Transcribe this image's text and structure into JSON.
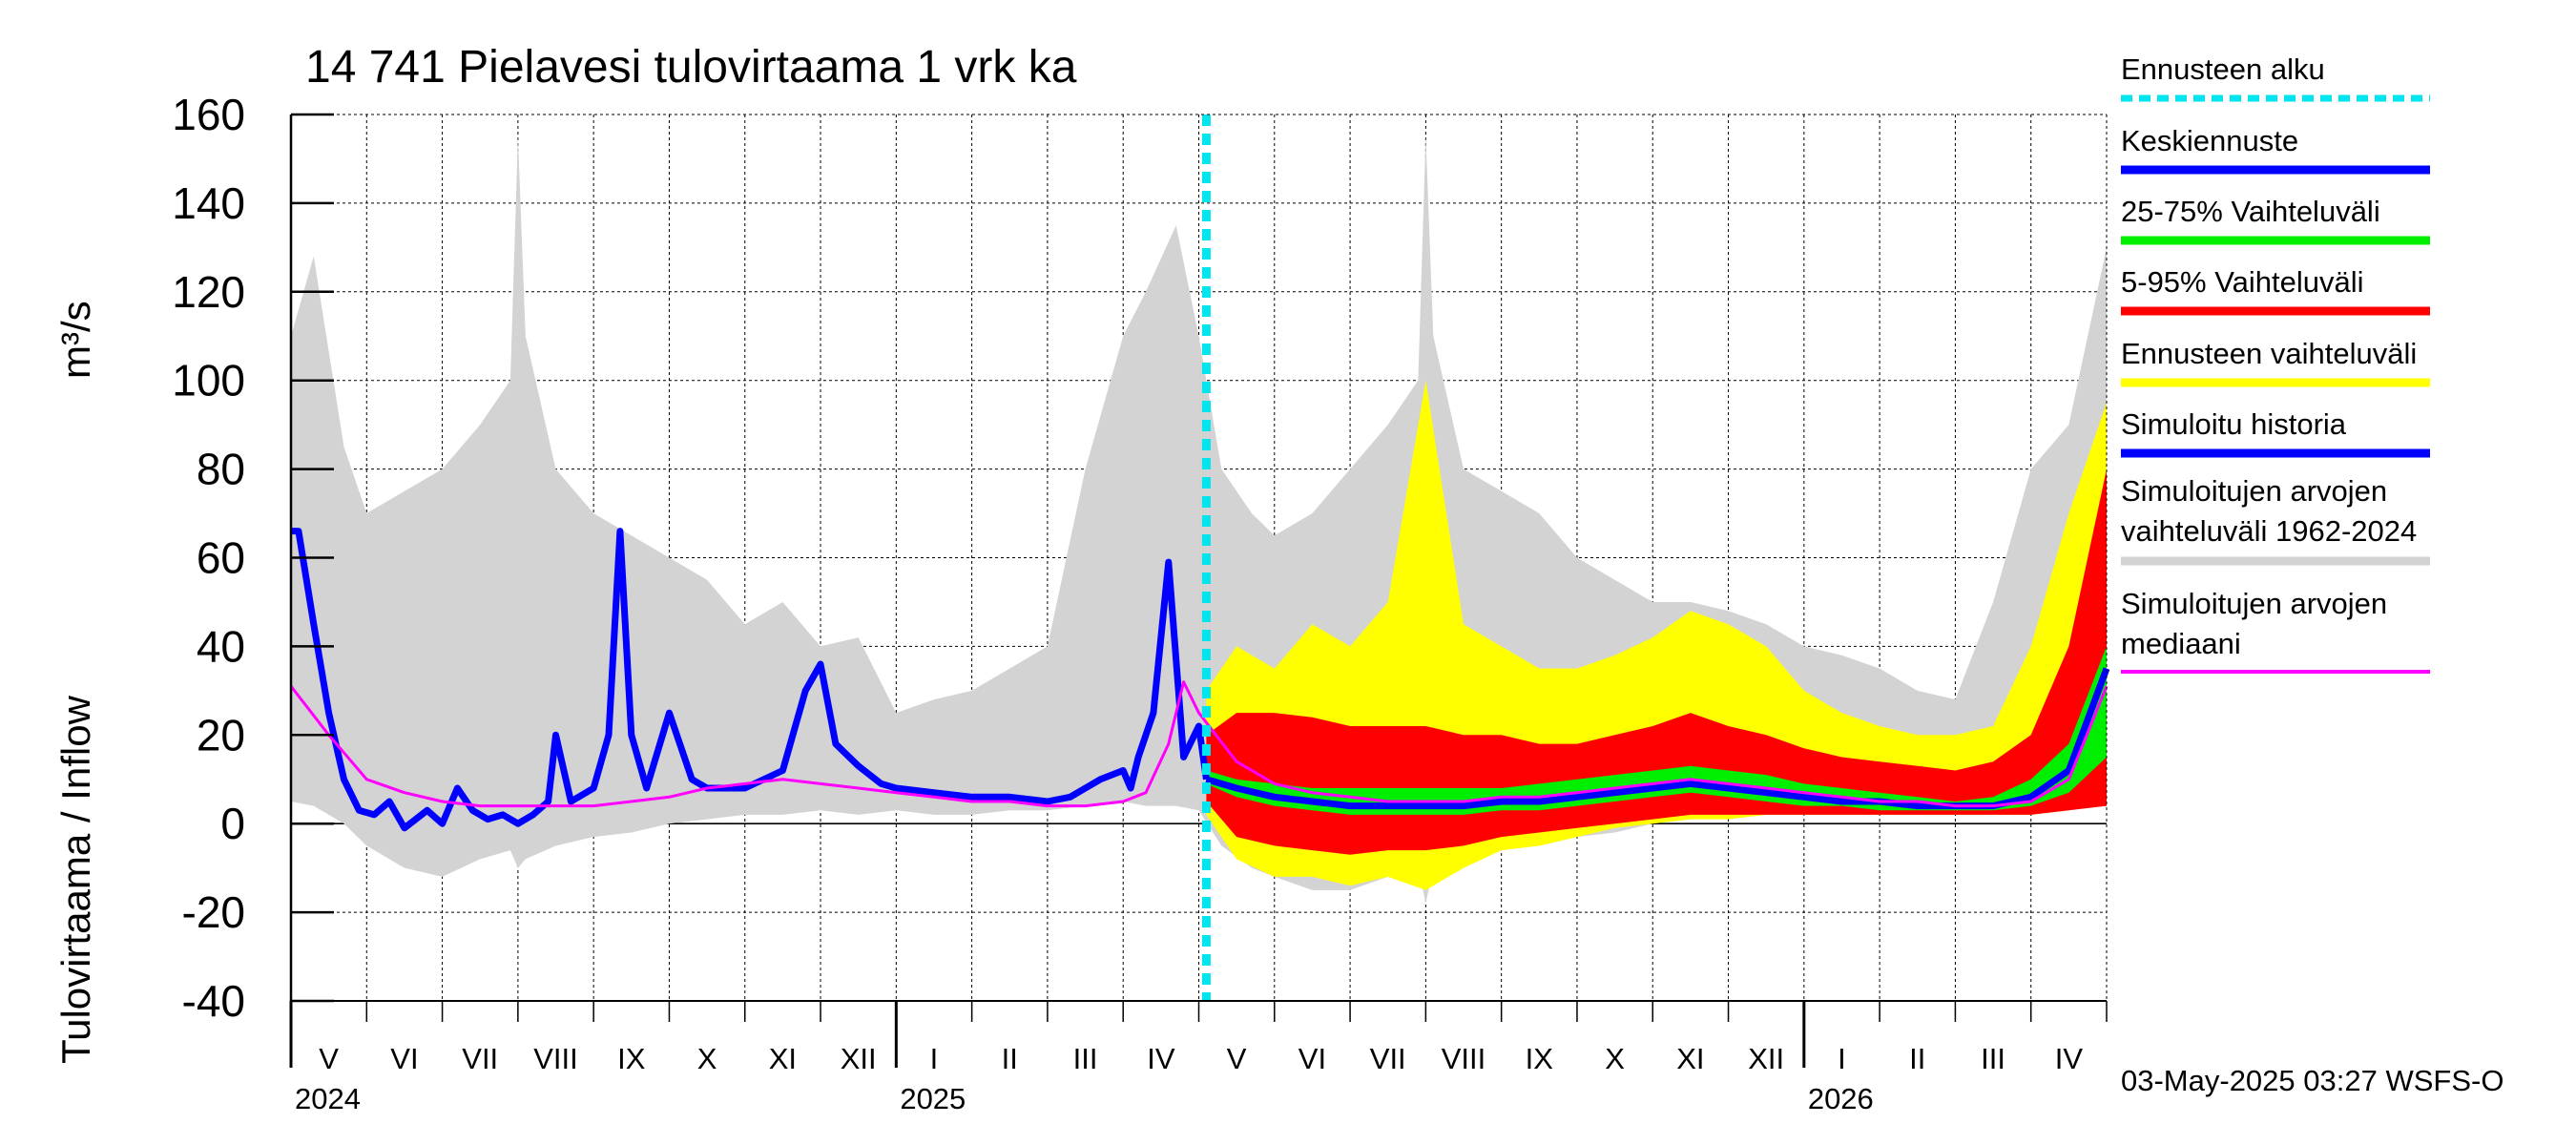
{
  "chart_data": {
    "type": "area",
    "title": "14 741 Pielavesi tulovirtaama 1 vrk ka",
    "ylabel": "Tulovirtaama / Inflow",
    "yunit": "m³/s",
    "ylim": [
      -40,
      160
    ],
    "yticks": [
      "-40",
      "-20",
      "0",
      "20",
      "40",
      "60",
      "80",
      "100",
      "120",
      "140",
      "160"
    ],
    "grid": true,
    "x_range_months": [
      0,
      24
    ],
    "forecast_start_month": 12.1,
    "months": [
      "V",
      "VI",
      "VII",
      "VIII",
      "IX",
      "X",
      "XI",
      "XII",
      "I",
      "II",
      "III",
      "IV",
      "V",
      "VI",
      "VII",
      "VIII",
      "IX",
      "X",
      "XI",
      "XII",
      "I",
      "II",
      "III",
      "IV"
    ],
    "years": [
      {
        "label": "2024",
        "month_index": 0
      },
      {
        "label": "2025",
        "month_index": 8
      },
      {
        "label": "2026",
        "month_index": 20
      }
    ],
    "series": [
      {
        "name": "Simuloitujen arvojen vaihteluväli 1962-2024",
        "color": "#d3d3d3",
        "x": [
          0,
          0.3,
          0.7,
          1,
          1.5,
          2,
          2.5,
          2.9,
          3,
          3.1,
          3.5,
          4,
          4.5,
          5,
          5.5,
          6,
          6.5,
          7,
          7.5,
          8,
          8.5,
          9,
          9.5,
          10,
          10.5,
          11,
          11.3,
          11.7,
          12,
          12.3,
          12.7,
          13,
          13.5,
          14,
          14.5,
          14.9,
          15,
          15.1,
          15.5,
          16,
          16.5,
          17,
          17.5,
          18,
          18.5,
          19,
          19.5,
          20,
          20.5,
          21,
          21.5,
          22,
          22.5,
          23,
          23.5,
          24
        ],
        "upper": [
          110,
          128,
          85,
          70,
          75,
          80,
          90,
          100,
          155,
          110,
          80,
          70,
          65,
          60,
          55,
          45,
          50,
          40,
          42,
          25,
          28,
          30,
          35,
          40,
          80,
          110,
          120,
          135,
          110,
          80,
          70,
          65,
          70,
          80,
          90,
          100,
          155,
          110,
          80,
          75,
          70,
          60,
          55,
          50,
          50,
          48,
          45,
          40,
          38,
          35,
          30,
          28,
          50,
          80,
          90,
          130
        ],
        "lower": [
          5,
          4,
          0,
          -5,
          -10,
          -12,
          -8,
          -6,
          -10,
          -8,
          -5,
          -3,
          -2,
          0,
          1,
          2,
          2,
          3,
          2,
          3,
          2,
          2,
          3,
          3,
          4,
          5,
          4,
          4,
          3,
          -5,
          -10,
          -12,
          -15,
          -15,
          -12,
          -10,
          -18,
          -10,
          -8,
          -6,
          -5,
          -3,
          -2,
          0,
          1,
          2,
          2,
          3,
          2,
          3,
          2,
          2,
          3,
          3,
          4,
          6
        ]
      },
      {
        "name": "Ennusteen vaihteluväli",
        "color": "#ffff00",
        "x": [
          12.1,
          12.5,
          13,
          13.5,
          14,
          14.5,
          15,
          15.5,
          16,
          16.5,
          17,
          17.5,
          18,
          18.5,
          19,
          19.5,
          20,
          20.5,
          21,
          21.5,
          22,
          22.5,
          23,
          23.5,
          24
        ],
        "upper": [
          30,
          40,
          35,
          45,
          40,
          50,
          100,
          45,
          40,
          35,
          35,
          38,
          42,
          48,
          45,
          40,
          30,
          25,
          22,
          20,
          20,
          22,
          40,
          70,
          95
        ],
        "lower": [
          2,
          -8,
          -12,
          -12,
          -14,
          -12,
          -15,
          -10,
          -6,
          -5,
          -3,
          -1,
          0,
          1,
          1,
          2,
          2,
          2,
          2,
          2,
          2,
          2,
          2,
          3,
          5
        ]
      },
      {
        "name": "5-95% Vaihteluväli",
        "color": "#ff0000",
        "x": [
          12.1,
          12.5,
          13,
          13.5,
          14,
          14.5,
          15,
          15.5,
          16,
          16.5,
          17,
          17.5,
          18,
          18.5,
          19,
          19.5,
          20,
          20.5,
          21,
          21.5,
          22,
          22.5,
          23,
          23.5,
          24
        ],
        "upper": [
          20,
          25,
          25,
          24,
          22,
          22,
          22,
          20,
          20,
          18,
          18,
          20,
          22,
          25,
          22,
          20,
          17,
          15,
          14,
          13,
          12,
          14,
          20,
          40,
          80
        ],
        "lower": [
          5,
          -3,
          -5,
          -6,
          -7,
          -6,
          -6,
          -5,
          -3,
          -2,
          -1,
          0,
          1,
          2,
          2,
          2,
          2,
          2,
          2,
          2,
          2,
          2,
          2,
          3,
          4
        ]
      },
      {
        "name": "25-75% Vaihteluväli",
        "color": "#00ee00",
        "x": [
          12.1,
          12.5,
          13,
          13.5,
          14,
          14.5,
          15,
          15.5,
          16,
          16.5,
          17,
          17.5,
          18,
          18.5,
          19,
          19.5,
          20,
          20.5,
          21,
          21.5,
          22,
          22.5,
          23,
          23.5,
          24
        ],
        "upper": [
          12,
          10,
          9,
          8,
          8,
          8,
          8,
          8,
          8,
          9,
          10,
          11,
          12,
          13,
          12,
          11,
          9,
          8,
          7,
          6,
          5,
          6,
          10,
          18,
          40
        ],
        "lower": [
          9,
          6,
          4,
          3,
          2,
          2,
          2,
          2,
          3,
          3,
          4,
          5,
          6,
          7,
          6,
          5,
          4,
          4,
          3,
          3,
          3,
          3,
          4,
          7,
          15
        ]
      },
      {
        "name": "Simuloitu historia",
        "color": "#0000ff",
        "x": [
          0,
          0.1,
          0.3,
          0.5,
          0.7,
          0.9,
          1.1,
          1.3,
          1.5,
          1.8,
          2,
          2.2,
          2.4,
          2.6,
          2.8,
          3,
          3.2,
          3.4,
          3.5,
          3.7,
          4,
          4.2,
          4.35,
          4.5,
          4.7,
          5,
          5.3,
          5.5,
          5.8,
          6,
          6.5,
          6.8,
          7,
          7.2,
          7.5,
          7.8,
          8,
          8.5,
          9,
          9.5,
          10,
          10.3,
          10.5,
          10.7,
          11,
          11.1,
          11.2,
          11.4,
          11.6,
          11.8,
          12,
          12.1
        ],
        "values": [
          66,
          66,
          45,
          25,
          10,
          3,
          2,
          5,
          -1,
          3,
          0,
          8,
          3,
          1,
          2,
          0,
          2,
          5,
          20,
          5,
          8,
          20,
          66,
          20,
          8,
          25,
          10,
          8,
          8,
          8,
          12,
          30,
          36,
          18,
          13,
          9,
          8,
          7,
          6,
          6,
          5,
          6,
          8,
          10,
          12,
          8,
          15,
          25,
          59,
          15,
          22,
          10
        ]
      },
      {
        "name": "Keskiennuste",
        "color": "#0000ff",
        "x": [
          12.1,
          12.5,
          13,
          13.5,
          14,
          14.5,
          15,
          15.5,
          16,
          16.5,
          17,
          17.5,
          18,
          18.5,
          19,
          19.5,
          20,
          20.5,
          21,
          21.5,
          22,
          22.5,
          23,
          23.5,
          24
        ],
        "values": [
          10,
          8,
          6,
          5,
          4,
          4,
          4,
          4,
          5,
          5,
          6,
          7,
          8,
          9,
          8,
          7,
          6,
          5,
          5,
          4,
          4,
          4,
          6,
          12,
          35
        ]
      },
      {
        "name": "Simuloitujen arvojen mediaani",
        "color": "#ff00ff",
        "x": [
          0,
          0.5,
          1,
          1.5,
          2,
          2.5,
          3,
          3.5,
          4,
          4.5,
          5,
          5.5,
          6,
          6.5,
          7,
          7.5,
          8,
          8.5,
          9,
          9.5,
          10,
          10.5,
          11,
          11.3,
          11.6,
          11.8,
          12,
          12.5,
          13,
          13.5,
          14,
          14.5,
          15,
          15.5,
          16,
          16.5,
          17,
          17.5,
          18,
          18.5,
          19,
          19.5,
          20,
          20.5,
          21,
          21.5,
          22,
          22.5,
          23,
          23.5,
          24
        ],
        "values": [
          31,
          20,
          10,
          7,
          5,
          4,
          4,
          4,
          4,
          5,
          6,
          8,
          9,
          10,
          9,
          8,
          7,
          6,
          5,
          5,
          4,
          4,
          5,
          7,
          18,
          32,
          25,
          14,
          9,
          7,
          6,
          5,
          5,
          5,
          6,
          6,
          7,
          8,
          9,
          10,
          9,
          8,
          7,
          6,
          5,
          5,
          4,
          4,
          5,
          10,
          31
        ]
      }
    ],
    "legend": [
      {
        "label": "Ennusteen alku",
        "color": "#00e5ee",
        "style": "dashed"
      },
      {
        "label": "Keskiennuste",
        "color": "#0000ff",
        "style": "line"
      },
      {
        "label": "25-75% Vaihteluväli",
        "color": "#00ee00",
        "style": "line"
      },
      {
        "label": "5-95% Vaihteluväli",
        "color": "#ff0000",
        "style": "line"
      },
      {
        "label": "Ennusteen vaihteluväli",
        "color": "#ffff00",
        "style": "line"
      },
      {
        "label": "Simuloitu historia",
        "color": "#0000ff",
        "style": "line"
      },
      {
        "label": "Simuloitujen arvojen",
        "label2": "vaihteluväli 1962-2024",
        "color": "#d3d3d3",
        "style": "line"
      },
      {
        "label": "Simuloitujen arvojen",
        "label2": "mediaani",
        "color": "#ff00ff",
        "style": "line"
      }
    ],
    "footer": "03-May-2025 03:27 WSFS-O"
  }
}
